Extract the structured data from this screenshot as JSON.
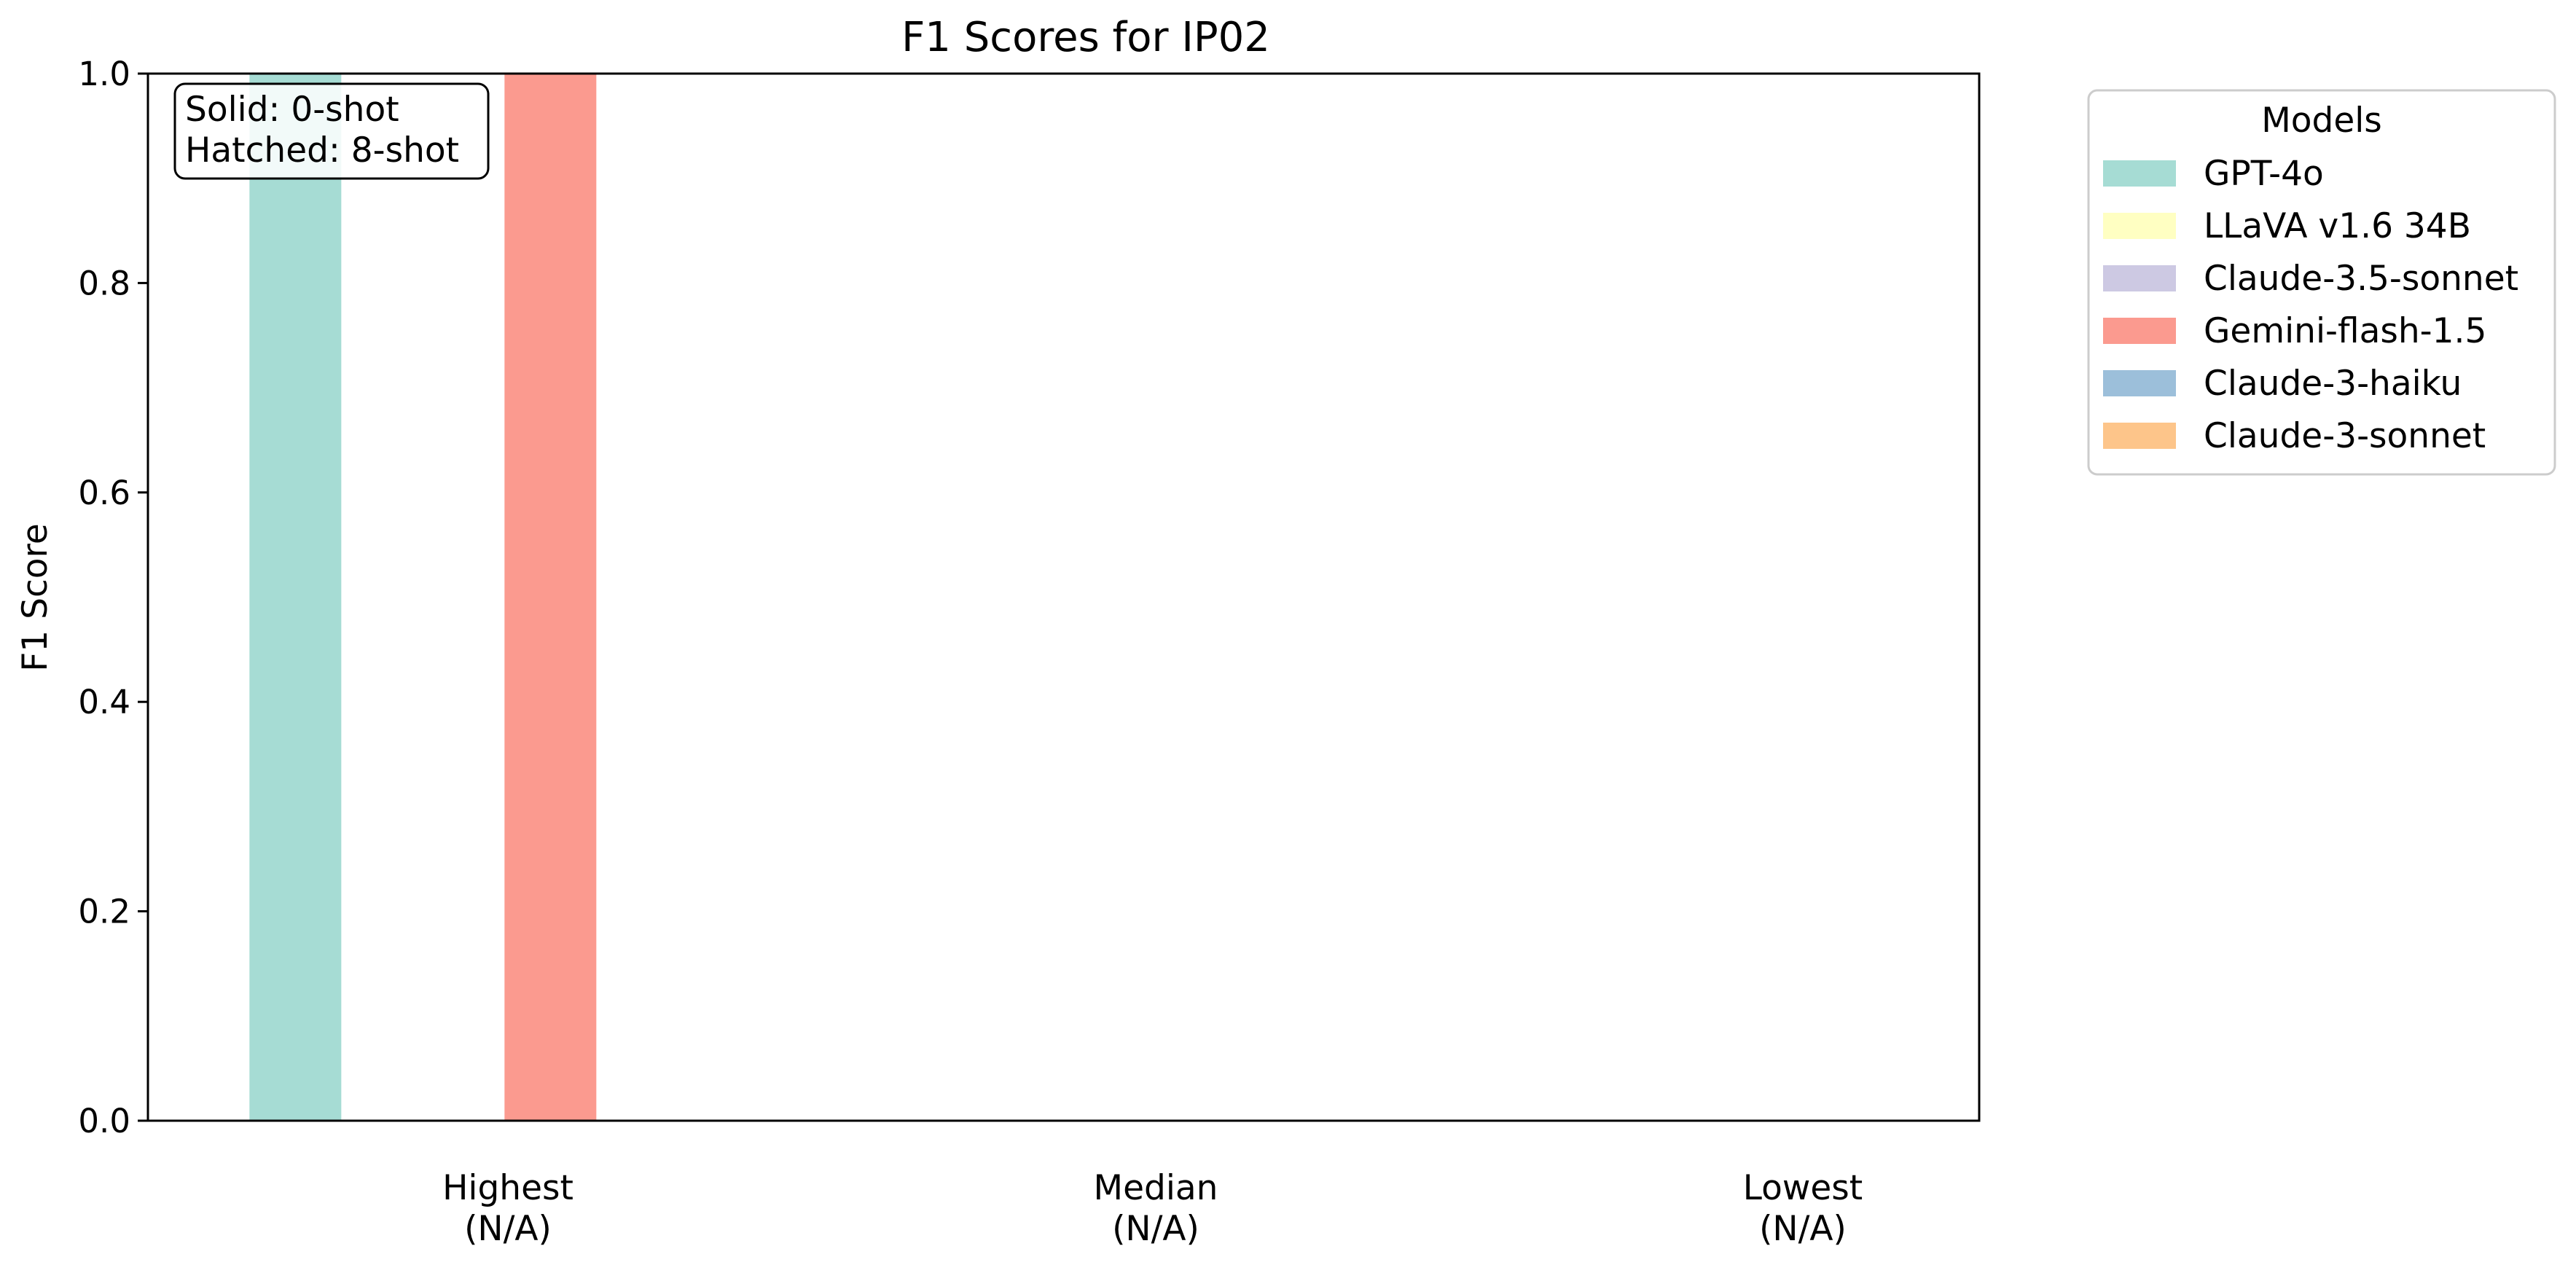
{
  "chart_data": {
    "type": "bar",
    "title": "F1 Scores for IP02",
    "xlabel": "",
    "ylabel": "F1 Score",
    "ylim": [
      0,
      1.0
    ],
    "yticks": [
      0.0,
      0.2,
      0.4,
      0.6,
      0.8,
      1.0
    ],
    "ytick_labels": [
      "0.0",
      "0.2",
      "0.4",
      "0.6",
      "0.8",
      "1.0"
    ],
    "categories": [
      {
        "line1": "Highest",
        "line2": "(N/A)"
      },
      {
        "line1": "Median",
        "line2": "(N/A)"
      },
      {
        "line1": "Lowest",
        "line2": "(N/A)"
      }
    ],
    "series": [
      {
        "name": "GPT-4o",
        "color": "#a6dcd4",
        "values": [
          1.0,
          0,
          0
        ]
      },
      {
        "name": "LLaVA v1.6 34B",
        "color": "#ffffc2",
        "values": [
          0,
          0,
          0
        ]
      },
      {
        "name": "Claude-3.5-sonnet",
        "color": "#cdc9e3",
        "values": [
          0,
          0,
          0
        ]
      },
      {
        "name": "Gemini-flash-1.5",
        "color": "#fb9a8f",
        "values": [
          1.0,
          0,
          0
        ]
      },
      {
        "name": "Claude-3-haiku",
        "color": "#9cbfda",
        "values": [
          0,
          0,
          0
        ]
      },
      {
        "name": "Claude-3-sonnet",
        "color": "#fdc58a",
        "values": [
          0,
          0,
          0
        ]
      }
    ],
    "legend": {
      "title": "Models",
      "placement": "outside-right"
    },
    "annotation": {
      "line1": "Solid: 0-shot",
      "line2": "Hatched: 8-shot"
    },
    "grid": false
  }
}
